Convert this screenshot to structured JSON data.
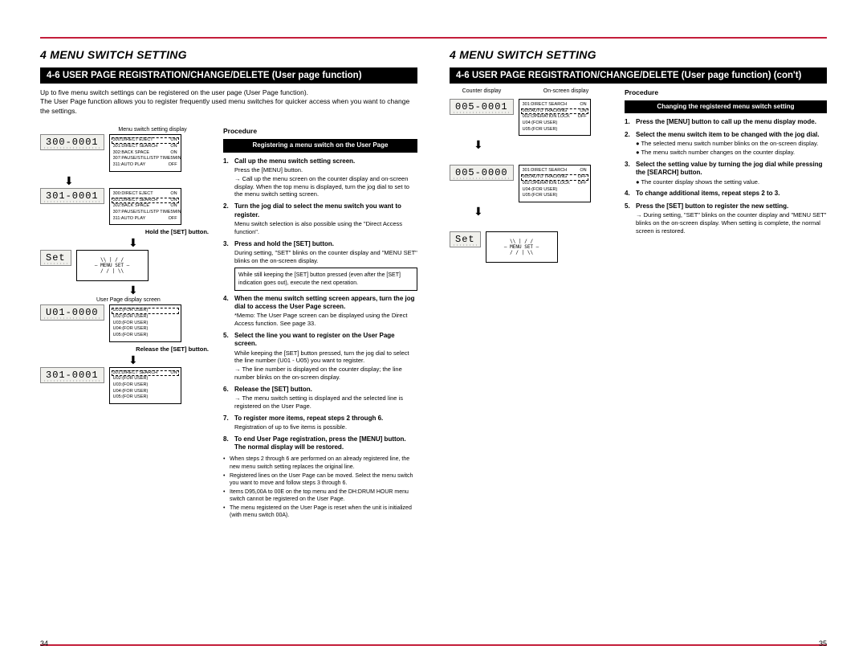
{
  "colors": {
    "red": "#c41e3a",
    "black": "#000000",
    "lcd_bg": "#f0f0ec"
  },
  "left": {
    "heading": "4 MENU SWITCH SETTING",
    "band": "4-6 USER PAGE REGISTRATION/CHANGE/DELETE (User page function)",
    "intro": "Up to five menu switch settings can be registered on the user page (User Page function).\nThe User Page function allows you to register frequently used menu switches for quicker access when you want to change the settings.",
    "left_col": {
      "menu_switch_label": "Menu switch setting display",
      "lcd1": "300-0001",
      "osd1": [
        {
          "l": "300:DIRECT EJECT",
          "r": "ON",
          "hl": true
        },
        {
          "l": "301:DIRECT SEARCH",
          "r": "ON"
        },
        {
          "l": "302:BACK SPACE",
          "r": "ON"
        },
        {
          "l": "307:PAUSE/STILL/STP TIME",
          "r": "5MIN"
        },
        {
          "l": "311:AUTO PLAY",
          "r": "OFF"
        }
      ],
      "lcd2": "301-0001",
      "osd2": [
        {
          "l": "300:DIRECT EJECT",
          "r": "ON"
        },
        {
          "l": "301:DIRECT SEARCH",
          "r": "ON",
          "hl": true
        },
        {
          "l": "302:BACK SPACE",
          "r": "ON"
        },
        {
          "l": "307:PAUSE/STILL/STP TIME",
          "r": "5MIN"
        },
        {
          "l": "311:AUTO PLAY",
          "r": "OFF"
        }
      ],
      "hold_caption": "Hold the [SET] button.",
      "lcd3": "Set",
      "user_page_label": "User Page display screen",
      "lcd4": "U01-0000",
      "osd4": [
        {
          "l": "U01:(FOR USER)",
          "r": "",
          "hl": true
        },
        {
          "l": "U02:(FOR USER)",
          "r": ""
        },
        {
          "l": "U03:(FOR USER)",
          "r": ""
        },
        {
          "l": "U04:(FOR USER)",
          "r": ""
        },
        {
          "l": "U05:(FOR USER)",
          "r": ""
        }
      ],
      "release_caption": "Release the [SET] button.",
      "lcd5": "301-0001",
      "osd5": [
        {
          "l": "301:DIRECT SEARCH",
          "r": "ON",
          "hl": true
        },
        {
          "l": "U02:(FOR USER)",
          "r": ""
        },
        {
          "l": "U03:(FOR USER)",
          "r": ""
        },
        {
          "l": "U04:(FOR USER)",
          "r": ""
        },
        {
          "l": "U05:(FOR USER)",
          "r": ""
        }
      ]
    },
    "proc_title": "Procedure",
    "sub_band": "Registering a menu switch on the User Page",
    "steps": [
      {
        "n": "1",
        "t": "Call up the menu switch setting screen.",
        "subs": [
          "Press the [MENU] button."
        ],
        "arrow": "Call up the menu screen on the counter display and on-screen display. When the top menu is displayed, turn the jog dial to set to the menu switch setting screen."
      },
      {
        "n": "2",
        "t": "Turn the jog dial to select the menu switch you want to register.",
        "subs": [
          "Menu switch selection is also possible using the \"Direct Access function\"."
        ]
      },
      {
        "n": "3",
        "t": "Press and hold the [SET] button.",
        "subs": [
          "During setting, \"SET\" blinks on the counter display and \"MENU SET\" blinks on the on-screen display."
        ],
        "note": "While still keeping the [SET] button pressed (even after the [SET] indication goes out), execute the next operation."
      },
      {
        "n": "4",
        "t": "When the menu switch setting screen appears, turn the jog dial to access the User Page screen.",
        "memo": "The User Page screen can be displayed using the Direct Access function. See page 33."
      },
      {
        "n": "5",
        "t": "Select the line you want to register on the User Page screen.",
        "subs": [
          "While keeping the [SET] button pressed, turn the jog dial to select the line number (U01 - U05) you want to register."
        ],
        "arrow": "The line number is displayed on the counter display; the line number blinks on the on-screen display."
      },
      {
        "n": "6",
        "t": "Release the [SET] button.",
        "arrow": "The menu switch setting is displayed and the selected line is registered on the User Page."
      },
      {
        "n": "7",
        "t": "To register more items, repeat steps 2 through 6.",
        "subs": [
          "Registration of up to five items is possible."
        ]
      },
      {
        "n": "8",
        "t": "To end User Page registration, press the [MENU] button. The normal display will be restored."
      }
    ],
    "tail_bullets": [
      "When steps 2 through 6 are performed on an already registered line, the new menu switch setting replaces the original line.",
      "Registered lines on the User Page can be moved. Select the menu switch you want to move and follow steps 3 through 6.",
      "Items D95,00A to 00E on the top menu and the DH:DRUM HOUR menu switch cannot be registered on the User Page.",
      "The menu registered on the User Page is reset when the unit is initialized (with menu switch 00A)."
    ],
    "page_num": "34"
  },
  "right": {
    "heading": "4 MENU SWITCH SETTING",
    "band": "4-6 USER PAGE REGISTRATION/CHANGE/DELETE (User page function) (con't)",
    "left_col": {
      "counter_label": "Counter display",
      "onscreen_label": "On-screen display",
      "lcd1": "005-0001",
      "osd1": [
        {
          "l": "301:DIRECT SEARCH",
          "r": "ON"
        },
        {
          "l": "005:AUTO TRACKING",
          "r": "ON",
          "hl": true
        },
        {
          "l": "002:OPERATION LOCK",
          "r": "OFF"
        },
        {
          "l": "U04:(FOR USER)",
          "r": ""
        },
        {
          "l": "U05:(FOR USER)",
          "r": ""
        }
      ],
      "lcd2": "005-0000",
      "osd2": [
        {
          "l": "301:DIRECT SEARCH",
          "r": "ON"
        },
        {
          "l": "005:AUTO TRACKING",
          "r": "OFF",
          "hl": true
        },
        {
          "l": "002:OPERATION LOCK",
          "r": "OFF"
        },
        {
          "l": "U04:(FOR USER)",
          "r": ""
        },
        {
          "l": "U05:(FOR USER)",
          "r": ""
        }
      ],
      "lcd3": "Set"
    },
    "proc_title": "Procedure",
    "sub_band": "Changing the registered menu switch setting",
    "steps": [
      {
        "n": "1",
        "t": "Press the [MENU] button to call up the menu display mode."
      },
      {
        "n": "2",
        "t": "Select the menu switch item to be changed with the jog dial.",
        "bullets": [
          "The selected menu switch number blinks on the on-screen display.",
          "The menu switch number changes on the counter display."
        ]
      },
      {
        "n": "3",
        "t": "Select the setting value by turning the jog dial while pressing the [SEARCH] button.",
        "bullets": [
          "The counter display shows the setting value."
        ]
      },
      {
        "n": "4",
        "t": "To change additional items, repeat steps 2 to 3."
      },
      {
        "n": "5",
        "t": "Press the [SET] button to register the new setting.",
        "arrow": "During setting, \"SET\" blinks on the counter display and \"MENU SET\" blinks on the on-screen display. When setting is complete, the normal screen is restored."
      }
    ],
    "page_num": "35"
  }
}
